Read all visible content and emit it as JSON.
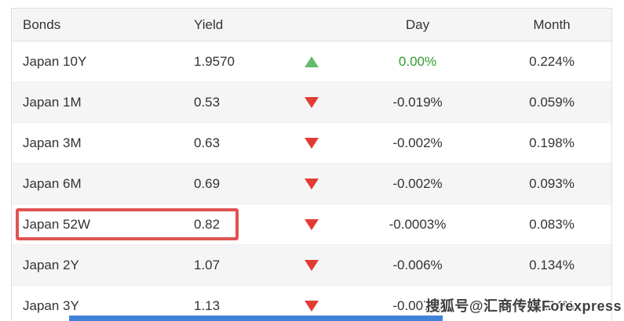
{
  "table": {
    "headers": {
      "bonds": "Bonds",
      "yield": "Yield",
      "day": "Day",
      "month": "Month"
    },
    "rows": [
      {
        "bond": "Japan 10Y",
        "yield": "1.9570",
        "trend": "up",
        "day": "0.00%",
        "month": "0.224%",
        "highlighted": false
      },
      {
        "bond": "Japan 1M",
        "yield": "0.53",
        "trend": "down",
        "day": "-0.019%",
        "month": "0.059%",
        "highlighted": false
      },
      {
        "bond": "Japan 3M",
        "yield": "0.63",
        "trend": "down",
        "day": "-0.002%",
        "month": "0.198%",
        "highlighted": false
      },
      {
        "bond": "Japan 6M",
        "yield": "0.69",
        "trend": "down",
        "day": "-0.002%",
        "month": "0.093%",
        "highlighted": false
      },
      {
        "bond": "Japan 52W",
        "yield": "0.82",
        "trend": "down",
        "day": "-0.0003%",
        "month": "0.083%",
        "highlighted": true
      },
      {
        "bond": "Japan 2Y",
        "yield": "1.07",
        "trend": "down",
        "day": "-0.006%",
        "month": "0.134%",
        "highlighted": false
      },
      {
        "bond": "Japan 3Y",
        "yield": "1.13",
        "trend": "down",
        "day": "-0.007%",
        "month": "0.124%",
        "highlighted": false
      }
    ]
  },
  "watermark": {
    "text": "搜狐号@汇商传媒Forexpress"
  },
  "colors": {
    "up_triangle_green": "#66bb6a",
    "down_triangle_red": "#e23b33",
    "day_positive_green_text": "#2f9b2f",
    "highlight_box_red": "#e05353",
    "header_bg": "#f5f5f5",
    "alt_row_bg": "#f5f5f5",
    "table_border": "#e0e0e0",
    "bottom_blue_bar": "#3f83d9"
  }
}
